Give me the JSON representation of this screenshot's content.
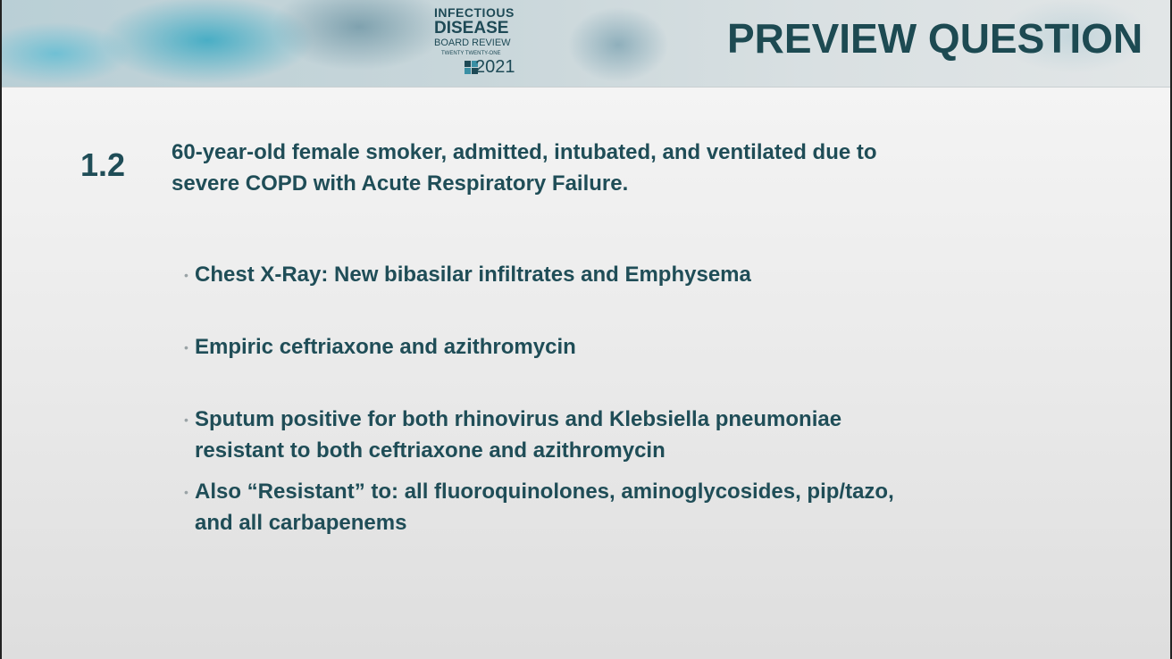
{
  "header": {
    "logo": {
      "line1": "INFECTIOUS",
      "line2": "DISEASE",
      "line3": "BOARD REVIEW",
      "line4": "TWENTY TWENTY-ONE",
      "year": "2021"
    },
    "title": "PREVIEW QUESTION"
  },
  "question": {
    "number": "1.2",
    "lines": [
      "60-year-old female smoker, admitted, intubated, and ventilated due to",
      "severe COPD with Acute Respiratory Failure."
    ]
  },
  "bullets": [
    {
      "lines": [
        "Chest X-Ray: New bibasilar infiltrates and Emphysema"
      ]
    },
    {
      "lines": [
        "Empiric ceftriaxone and azithromycin"
      ]
    },
    {
      "lines": [
        "Sputum positive for both rhinovirus and Klebsiella pneumoniae",
        "resistant to both ceftriaxone and azithromycin"
      ]
    },
    {
      "lines": [
        "Also “Resistant” to: all fluoroquinolones, aminoglycosides, pip/tazo,",
        "and all carbapenems"
      ]
    }
  ]
}
